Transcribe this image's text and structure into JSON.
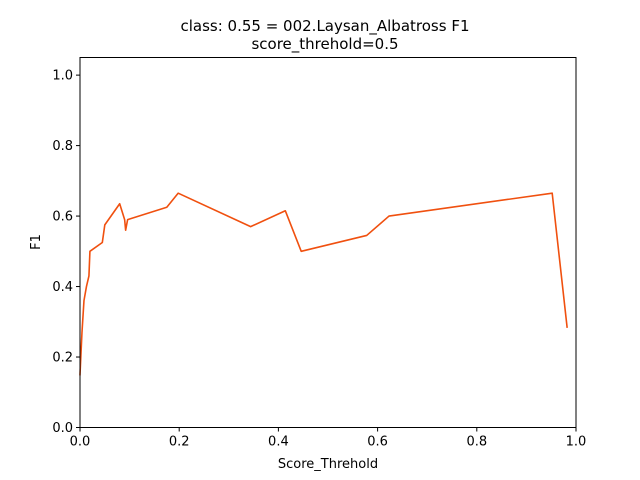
{
  "chart_data": {
    "type": "line",
    "title": "class: 0.55 = 002.Laysan_Albatross F1",
    "subtitle": "score_threhold=0.5",
    "xlabel": "Score_Threhold",
    "ylabel": "F1",
    "xlim": [
      0.0,
      1.0
    ],
    "ylim": [
      0.0,
      1.05
    ],
    "x_ticks": [
      0.0,
      0.2,
      0.4,
      0.6,
      0.8,
      1.0
    ],
    "x_tick_labels": [
      "0.0",
      "0.2",
      "0.4",
      "0.6",
      "0.8",
      "1.0"
    ],
    "y_ticks": [
      0.0,
      0.2,
      0.4,
      0.6,
      0.8,
      1.0
    ],
    "y_tick_labels": [
      "0.0",
      "0.2",
      "0.4",
      "0.6",
      "0.8",
      "1.0"
    ],
    "grid": false,
    "legend": "none",
    "series": [
      {
        "color": "#f0500f",
        "x": [
          0.0,
          0.004,
          0.008,
          0.013,
          0.018,
          0.02,
          0.045,
          0.05,
          0.08,
          0.09,
          0.092,
          0.096,
          0.175,
          0.198,
          0.344,
          0.414,
          0.446,
          0.578,
          0.623,
          0.952,
          0.982
        ],
        "y": [
          0.15,
          0.27,
          0.36,
          0.4,
          0.43,
          0.5,
          0.525,
          0.575,
          0.635,
          0.59,
          0.56,
          0.59,
          0.625,
          0.665,
          0.57,
          0.615,
          0.5,
          0.545,
          0.6,
          0.665,
          0.285
        ]
      }
    ]
  }
}
